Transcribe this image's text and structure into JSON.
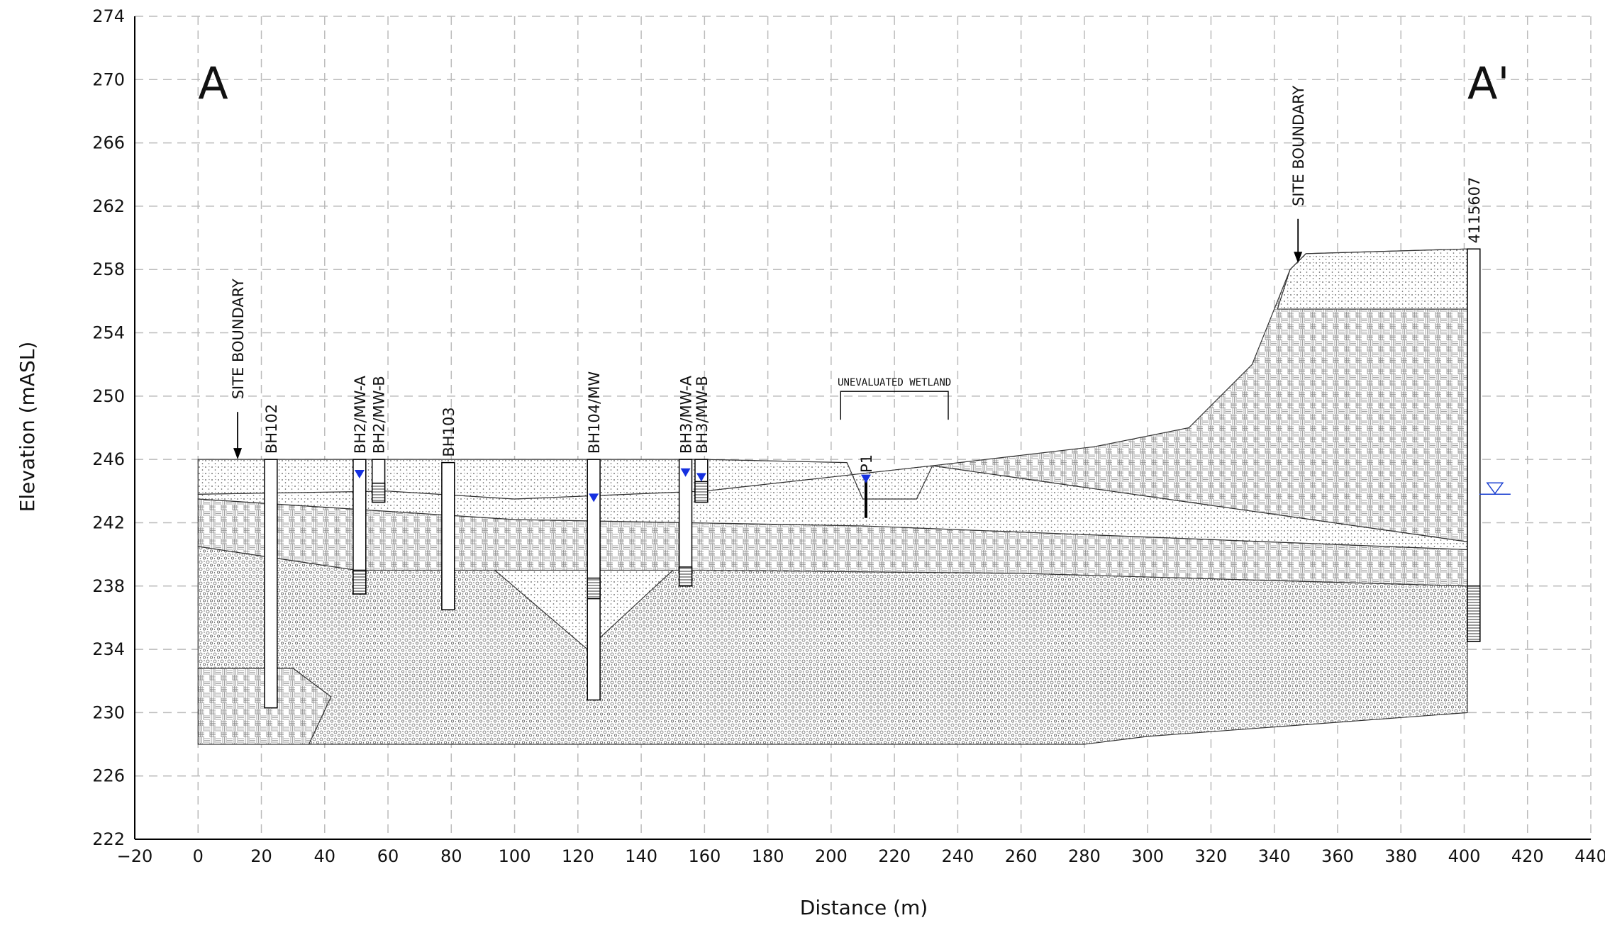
{
  "chart_data": {
    "type": "cross-section",
    "x_label": "Distance (m)",
    "y_label": "Elevation (mASL)",
    "xlim": [
      -20,
      440
    ],
    "ylim": [
      222,
      274
    ],
    "xticks": [
      {
        "value": -20,
        "label": "−20"
      },
      0,
      20,
      40,
      60,
      80,
      100,
      120,
      140,
      160,
      180,
      200,
      220,
      240,
      260,
      280,
      300,
      320,
      340,
      360,
      380,
      400,
      420,
      440
    ],
    "yticks": [
      222,
      226,
      230,
      234,
      238,
      242,
      246,
      250,
      254,
      258,
      262,
      266,
      270,
      274
    ],
    "grid": true,
    "layers": [
      {
        "fill": "gravel",
        "x": [
          0,
          50,
          160,
          260,
          401,
          401,
          300,
          280,
          35,
          42,
          30,
          0
        ],
        "y": [
          240.5,
          239,
          239,
          238.8,
          238,
          230,
          228.5,
          228,
          228,
          231,
          232.8,
          232.8
        ]
      },
      {
        "fill": "weave",
        "x": [
          0,
          30,
          42,
          35,
          0
        ],
        "y": [
          232.8,
          232.8,
          231,
          228,
          228
        ]
      },
      {
        "fill": "dots",
        "x": [
          92,
          150,
          123
        ],
        "y": [
          239.3,
          239,
          234
        ]
      },
      {
        "fill": "weave",
        "x": [
          0,
          100,
          210,
          401,
          401,
          260,
          160,
          50,
          0
        ],
        "y": [
          243.5,
          242.2,
          241.8,
          240.3,
          238,
          238.8,
          239,
          239,
          240.5
        ]
      },
      {
        "fill": "dots",
        "x": [
          0,
          60,
          100,
          160,
          232,
          401,
          401,
          210,
          100,
          0
        ],
        "y": [
          243.8,
          244,
          243.5,
          244,
          245.6,
          240.8,
          240.3,
          241.8,
          242.2,
          243.5
        ]
      },
      {
        "fill": "weave",
        "x": [
          232,
          283,
          313,
          333,
          345,
          350,
          401,
          401
        ],
        "y": [
          245.6,
          246.8,
          248,
          252,
          258,
          259,
          259.3,
          240.8
        ]
      },
      {
        "fill": "dots",
        "x": [
          345,
          350,
          401,
          401,
          341
        ],
        "y": [
          258,
          259,
          259.3,
          255.5,
          255.5
        ]
      },
      {
        "fill": "dots",
        "x": [
          0,
          160,
          205,
          210,
          227,
          232,
          160,
          100,
          60,
          0
        ],
        "y": [
          246,
          246,
          245.8,
          243.5,
          243.5,
          245.6,
          244,
          243.5,
          244,
          243.8
        ]
      }
    ],
    "boreholes": [
      {
        "name": "BH102",
        "x": 23,
        "top": 246,
        "bottom": 230.3
      },
      {
        "name": "BH2/MW-A",
        "x": 51,
        "top": 246,
        "bottom": 237.5,
        "screen": [
          239,
          237.5
        ],
        "water": 244.8
      },
      {
        "name": "BH2/MW-B",
        "x": 57,
        "top": 246,
        "bottom": 243.3,
        "screen": [
          244.5,
          243.3
        ]
      },
      {
        "name": "BH103",
        "x": 79,
        "top": 245.8,
        "bottom": 236.5
      },
      {
        "name": "BH104/MW",
        "x": 125,
        "top": 246,
        "bottom": 230.8,
        "screen": [
          238.5,
          237.2
        ],
        "water": 243.3
      },
      {
        "name": "BH3/MW-A",
        "x": 154,
        "top": 246,
        "bottom": 238,
        "screen": [
          239.2,
          238
        ],
        "water": 244.9
      },
      {
        "name": "BH3/MW-B",
        "x": 159,
        "top": 246,
        "bottom": 243.3,
        "screen": [
          244.6,
          243.3
        ],
        "water": 244.6
      },
      {
        "name": "P1",
        "x": 211,
        "top": 244.8,
        "bottom": 242.3,
        "water": 244.5
      },
      {
        "name": "4115607",
        "x": 403,
        "top": 259.3,
        "bottom": 234.5,
        "screen": [
          238,
          234.5
        ],
        "water": 243.8
      }
    ],
    "annotations": {
      "section_start": "A",
      "section_end": "A'",
      "boundary_left": "SITE BOUNDARY",
      "boundary_right": "SITE BOUNDARY",
      "wetland": "UNEVALUATED WETLAND"
    }
  }
}
